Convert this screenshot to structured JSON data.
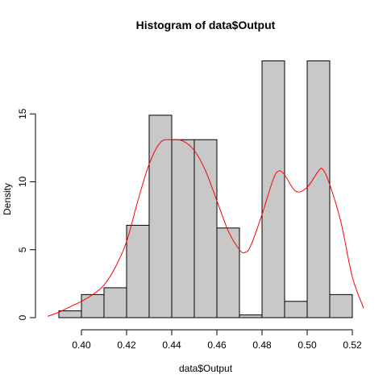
{
  "chart_data": {
    "type": "bar",
    "title": "Histogram of data$Output",
    "xlabel": "data$Output",
    "ylabel": "Density",
    "xlim": [
      0.39,
      0.52
    ],
    "ylim": [
      0,
      19
    ],
    "x_ticks": [
      "0.40",
      "0.42",
      "0.44",
      "0.46",
      "0.48",
      "0.50",
      "0.52"
    ],
    "y_ticks": [
      "0",
      "5",
      "10",
      "15"
    ],
    "bins": [
      {
        "from": 0.39,
        "to": 0.4,
        "density": 0.5
      },
      {
        "from": 0.4,
        "to": 0.41,
        "density": 1.7
      },
      {
        "from": 0.41,
        "to": 0.42,
        "density": 2.2
      },
      {
        "from": 0.42,
        "to": 0.43,
        "density": 6.8
      },
      {
        "from": 0.43,
        "to": 0.44,
        "density": 14.9
      },
      {
        "from": 0.44,
        "to": 0.45,
        "density": 13.1
      },
      {
        "from": 0.45,
        "to": 0.46,
        "density": 13.1
      },
      {
        "from": 0.46,
        "to": 0.47,
        "density": 6.6
      },
      {
        "from": 0.47,
        "to": 0.48,
        "density": 0.2
      },
      {
        "from": 0.48,
        "to": 0.49,
        "density": 18.9
      },
      {
        "from": 0.49,
        "to": 0.5,
        "density": 1.2
      },
      {
        "from": 0.5,
        "to": 0.51,
        "density": 18.9
      },
      {
        "from": 0.51,
        "to": 0.52,
        "density": 1.7
      }
    ],
    "density_curve": {
      "x": [
        0.385,
        0.39,
        0.395,
        0.4,
        0.405,
        0.41,
        0.415,
        0.42,
        0.425,
        0.43,
        0.435,
        0.44,
        0.445,
        0.45,
        0.455,
        0.46,
        0.465,
        0.47,
        0.4725,
        0.475,
        0.48,
        0.485,
        0.4875,
        0.49,
        0.495,
        0.5,
        0.505,
        0.507,
        0.51,
        0.515,
        0.52,
        0.525
      ],
      "y": [
        0.1,
        0.4,
        0.8,
        1.2,
        1.7,
        2.4,
        3.7,
        5.6,
        8.6,
        11.3,
        12.9,
        13.1,
        13.0,
        12.3,
        10.8,
        8.6,
        6.4,
        5.0,
        4.8,
        5.3,
        7.6,
        10.2,
        10.8,
        10.5,
        9.3,
        9.6,
        10.8,
        10.9,
        9.8,
        7.0,
        3.0,
        0.7
      ]
    },
    "grid": false,
    "bar_color": "#c8c8c8",
    "curve_color": "#ff0000"
  }
}
